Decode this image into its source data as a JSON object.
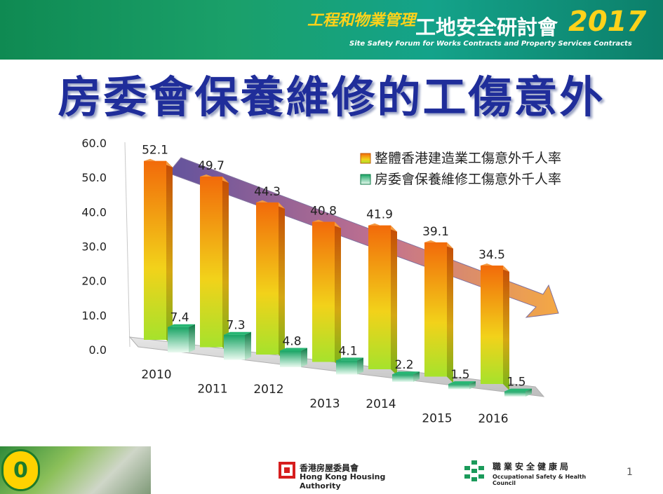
{
  "banner": {
    "title_main_prefix": "工程和物業管理",
    "title_main": "工地安全研討會",
    "year": "2017",
    "subtitle": "Site Safety Forum for Works Contracts and Property Services Contracts"
  },
  "slide": {
    "title": "房委會保養維修的工傷意外",
    "page_number": "1"
  },
  "logos": {
    "hkha_cn": "香港房屋委員會",
    "hkha_en": "Hong Kong Housing Authority",
    "oshc_cn": "職業安全健康局",
    "oshc_en": "Occupational Safety & Health Council",
    "zero_label": "0"
  },
  "colors": {
    "orange": "#f07a10",
    "yellow_green": "#9ad62a",
    "teal": "#1aa86a",
    "title_blue": "#1f2d9a"
  },
  "chart_data": {
    "type": "bar",
    "title": "",
    "categories": [
      "2010",
      "2011",
      "2012",
      "2013",
      "2014",
      "2015",
      "2016"
    ],
    "series": [
      {
        "name": "整體香港建造業工傷意外千人率",
        "values": [
          52.1,
          49.7,
          44.3,
          40.8,
          41.9,
          39.1,
          34.5
        ]
      },
      {
        "name": "房委會保養維修工傷意外千人率",
        "values": [
          7.4,
          7.3,
          4.8,
          4.1,
          2.2,
          1.5,
          1.5
        ]
      }
    ],
    "value_labels_1": [
      "52.1",
      "49.7",
      "44.3",
      "40.8",
      "41.9",
      "39.1",
      "34.5"
    ],
    "value_labels_2": [
      "7.4",
      "7.3",
      "4.8",
      "4.1",
      "2.2",
      "1.5",
      "1.5"
    ],
    "y_ticks": [
      "60.0",
      "50.0",
      "40.0",
      "30.0",
      "20.0",
      "10.0",
      "0.0"
    ],
    "ylim": [
      0,
      60
    ],
    "legend_position": "top-right",
    "trend_arrow": "decreasing"
  }
}
